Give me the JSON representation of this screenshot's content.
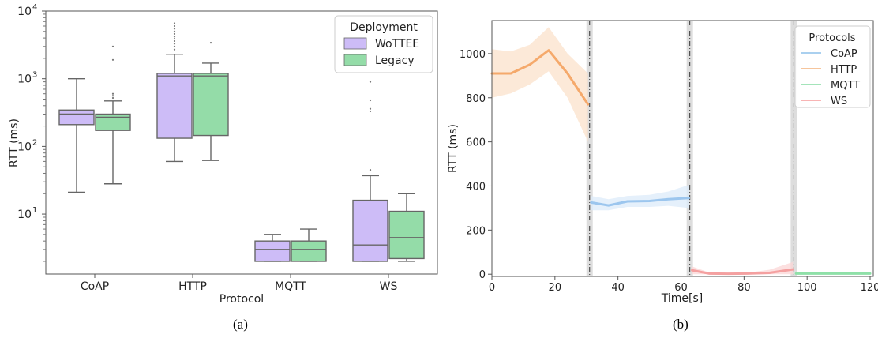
{
  "captions": [
    "(a)",
    "(b)"
  ],
  "chart_data": [
    {
      "type": "box",
      "panel": "a",
      "xlabel": "Protocol",
      "ylabel": "RTT (ms)",
      "yscale": "log",
      "ylim": [
        1.3,
        10000
      ],
      "yticks": [
        {
          "value": 10,
          "label": "10",
          "exp": "1"
        },
        {
          "value": 100,
          "label": "10",
          "exp": "2"
        },
        {
          "value": 1000,
          "label": "10",
          "exp": "3"
        },
        {
          "value": 10000,
          "label": "10",
          "exp": "4"
        }
      ],
      "categories": [
        "CoAP",
        "HTTP",
        "MQTT",
        "WS"
      ],
      "legend": {
        "title": "Deployment",
        "position": "top-right"
      },
      "series": [
        {
          "name": "WoTTEE",
          "color": "#cdbcf7",
          "boxes": [
            {
              "whislo": 21,
              "q1": 210,
              "med": 300,
              "q3": 345,
              "whishi": 1000,
              "fliers": []
            },
            {
              "whislo": 60,
              "q1": 132,
              "med": 1100,
              "q3": 1200,
              "whishi": 2300,
              "fliers": [
                2700,
                3000,
                3300,
                3600,
                3900,
                4200,
                4600,
                5000,
                5500,
                6000,
                6600
              ]
            },
            {
              "whislo": 2,
              "q1": 2,
              "med": 3,
              "q3": 4,
              "whishi": 5,
              "fliers": []
            },
            {
              "whislo": 2,
              "q1": 2,
              "med": 3.5,
              "q3": 16,
              "whishi": 37,
              "fliers": [
                45,
                330,
                360,
                480,
                900
              ]
            }
          ]
        },
        {
          "name": "Legacy",
          "color": "#94dca8",
          "boxes": [
            {
              "whislo": 28,
              "q1": 172,
              "med": 270,
              "q3": 300,
              "whishi": 470,
              "fliers": [
                520,
                560,
                600,
                1900,
                3000
              ]
            },
            {
              "whislo": 62,
              "q1": 145,
              "med": 1100,
              "q3": 1200,
              "whishi": 1700,
              "fliers": [
                3400
              ]
            },
            {
              "whislo": 2,
              "q1": 2,
              "med": 3,
              "q3": 4,
              "whishi": 6,
              "fliers": []
            },
            {
              "whislo": 2,
              "q1": 2.2,
              "med": 4.5,
              "q3": 11,
              "whishi": 20,
              "fliers": []
            }
          ]
        }
      ]
    },
    {
      "type": "line",
      "panel": "b",
      "xlabel": "Time[s]",
      "ylabel": "RTT (ms)",
      "xlim": [
        0,
        121
      ],
      "ylim": [
        -10,
        1150
      ],
      "xticks": [
        0,
        20,
        40,
        60,
        80,
        100,
        120
      ],
      "yticks": [
        0,
        200,
        400,
        600,
        800,
        1000
      ],
      "legend": {
        "title": "Protocols",
        "position": "top-right"
      },
      "legend_entries": [
        {
          "name": "CoAP",
          "color": "#8ec0ea"
        },
        {
          "name": "HTTP",
          "color": "#f4b27c"
        },
        {
          "name": "MQTT",
          "color": "#86dca4"
        },
        {
          "name": "WS",
          "color": "#f59c9c"
        }
      ],
      "series": [
        {
          "name": "HTTP",
          "color": "#f5a96b",
          "band_color": "#fbe1cb",
          "x": [
            0,
            6,
            12,
            18,
            24,
            30.5
          ],
          "y": [
            910,
            910,
            950,
            1015,
            910,
            770
          ],
          "lower": [
            800,
            820,
            860,
            920,
            800,
            600
          ],
          "upper": [
            1020,
            1010,
            1040,
            1120,
            1000,
            910
          ]
        },
        {
          "name": "CoAP",
          "color": "#9cc6ee",
          "band_color": "#dcebfa",
          "x": [
            31.5,
            37,
            43,
            50,
            56,
            62.5
          ],
          "y": [
            325,
            312,
            330,
            332,
            340,
            345
          ],
          "lower": [
            290,
            290,
            305,
            305,
            310,
            300
          ],
          "upper": [
            355,
            340,
            355,
            360,
            375,
            405
          ]
        },
        {
          "name": "WS",
          "color": "#f4a0a0",
          "band_color": "#fbd6d6",
          "x": [
            63.5,
            69,
            75,
            81,
            88,
            95.5
          ],
          "y": [
            18,
            3,
            2,
            3,
            6,
            22
          ],
          "lower": [
            0,
            0,
            0,
            0,
            0,
            0
          ],
          "upper": [
            35,
            8,
            6,
            7,
            20,
            55
          ]
        },
        {
          "name": "MQTT",
          "color": "#8fe0a8",
          "band_color": "#d5f3df",
          "x": [
            96.5,
            102,
            108,
            114,
            120
          ],
          "y": [
            3,
            3,
            3,
            3,
            3
          ],
          "lower": [
            1,
            1,
            1,
            1,
            1
          ],
          "upper": [
            6,
            6,
            6,
            6,
            6
          ]
        }
      ],
      "markers": [
        31,
        62.8,
        95.8
      ]
    }
  ]
}
